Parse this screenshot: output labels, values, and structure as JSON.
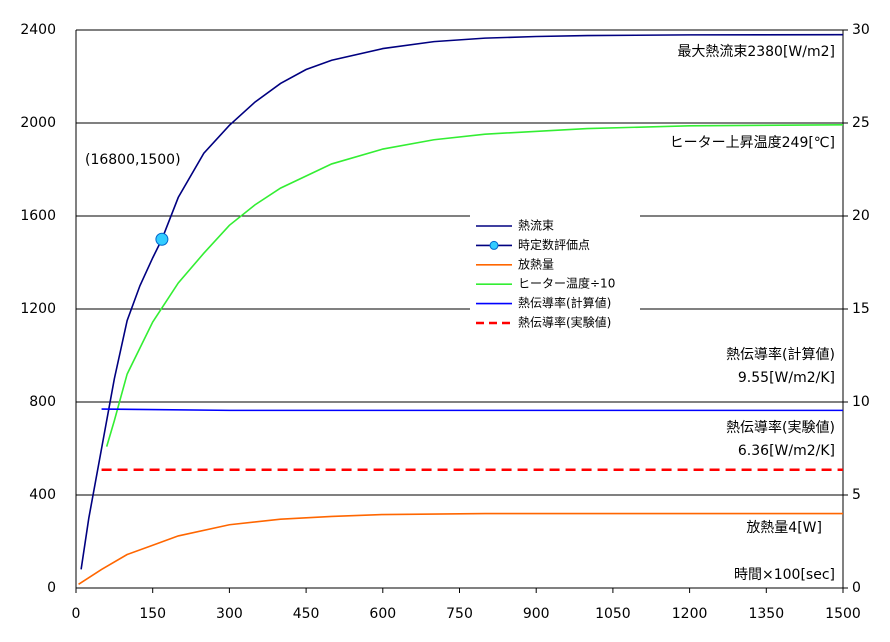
{
  "chart_data": {
    "type": "line",
    "xlim": [
      0,
      1500
    ],
    "xticks": [
      0,
      150,
      300,
      450,
      600,
      750,
      900,
      1050,
      1200,
      1350,
      1500
    ],
    "ylim": [
      0,
      2400
    ],
    "yticks": [
      0,
      400,
      800,
      1200,
      1600,
      2000,
      2400
    ],
    "y2lim": [
      0,
      30
    ],
    "y2ticks": [
      0,
      5,
      10,
      15,
      20,
      25,
      30
    ],
    "grid": true,
    "legend": "center",
    "series": [
      {
        "name": "熱流束",
        "color": "#000080",
        "x": [
          10,
          25,
          50,
          75,
          100,
          125,
          150,
          168,
          200,
          250,
          300,
          350,
          400,
          450,
          500,
          600,
          700,
          800,
          900,
          1000,
          1200,
          1500
        ],
        "values": [
          80,
          300,
          600,
          900,
          1150,
          1300,
          1420,
          1500,
          1680,
          1870,
          1990,
          2090,
          2170,
          2230,
          2270,
          2320,
          2350,
          2365,
          2372,
          2376,
          2379,
          2380
        ]
      },
      {
        "name": "時定数評価点",
        "color": "#33ccff",
        "marker": true,
        "x": [
          168
        ],
        "values": [
          1500
        ]
      },
      {
        "name": "放熱量",
        "color": "#ff6600",
        "axis": "y2",
        "x": [
          5,
          50,
          100,
          150,
          200,
          300,
          400,
          500,
          600,
          800,
          1500
        ],
        "values": [
          0.2,
          1,
          1.8,
          2.3,
          2.8,
          3.4,
          3.7,
          3.85,
          3.95,
          4.0,
          4.0
        ]
      },
      {
        "name": "ヒーター温度÷10",
        "color": "#33ee33",
        "axis": "y2",
        "x": [
          60,
          75,
          100,
          150,
          200,
          250,
          300,
          350,
          400,
          500,
          600,
          700,
          800,
          1000,
          1200,
          1500
        ],
        "values": [
          7.6,
          9,
          11.5,
          14.3,
          16.4,
          18,
          19.5,
          20.6,
          21.5,
          22.8,
          23.6,
          24.1,
          24.4,
          24.7,
          24.85,
          24.9
        ]
      },
      {
        "name": "熱伝導率(計算値)",
        "color": "#0000ff",
        "axis": "y2",
        "x": [
          50,
          300,
          1500
        ],
        "values": [
          9.62,
          9.55,
          9.55
        ]
      },
      {
        "name": "熱伝導率(実験値)",
        "color": "#ff0000",
        "axis": "y2",
        "dash": true,
        "x": [
          50,
          1500
        ],
        "values": [
          6.36,
          6.36
        ]
      }
    ],
    "annotations": [
      "最大熱流束2380[W/m2]",
      "ヒーター上昇温度249[℃]",
      "(16800,1500)",
      "熱伝導率(計算値)",
      "9.55[W/m2/K]",
      "熱伝導率(実験値)",
      "6.36[W/m2/K]",
      "放熱量4[W]",
      "時間×100[sec]"
    ]
  }
}
